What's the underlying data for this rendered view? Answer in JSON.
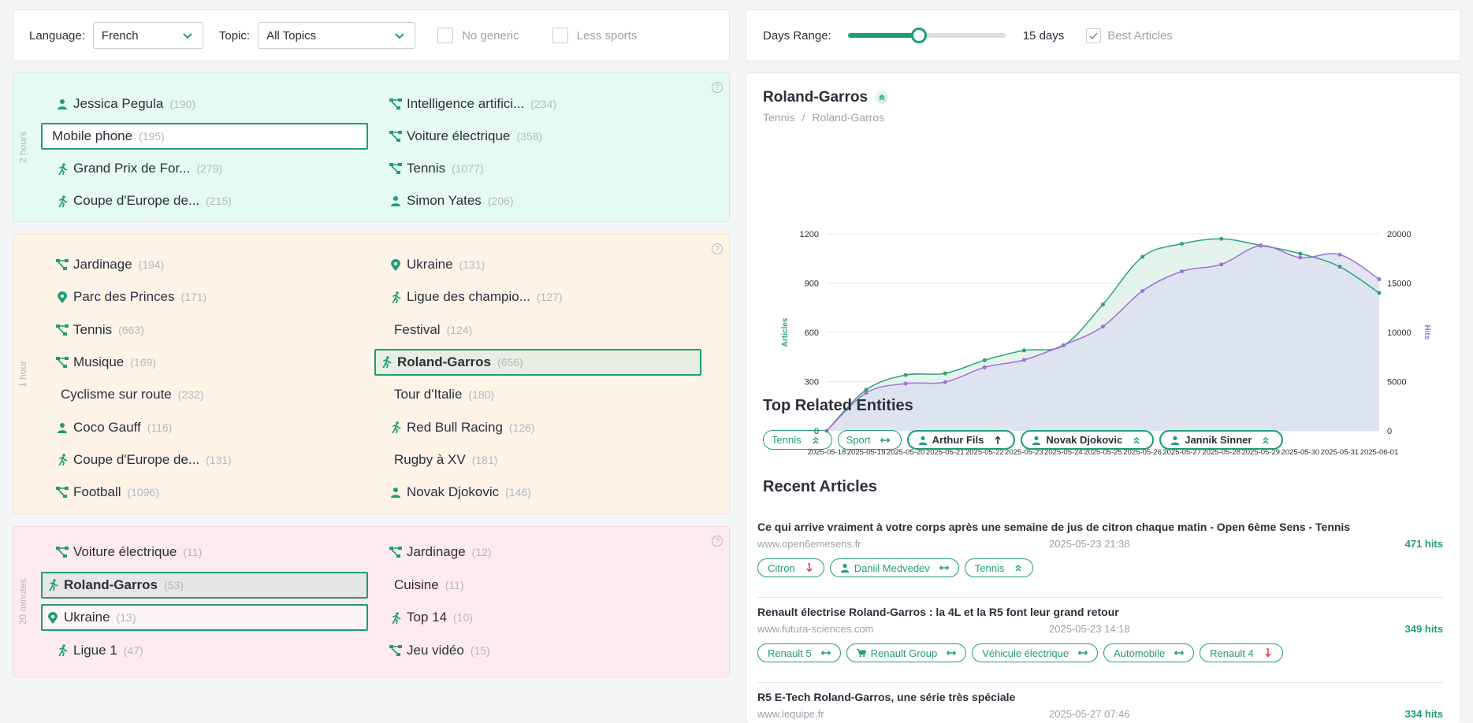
{
  "filters": {
    "language_label": "Language:",
    "language_value": "French",
    "topic_label": "Topic:",
    "topic_value": "All Topics",
    "no_generic_label": "No generic",
    "less_sports_label": "Less sports"
  },
  "panels": [
    {
      "side_label": "2 hours",
      "help": "?",
      "items": [
        {
          "name": "Jessica Pegula",
          "count": "(190)",
          "icon": "person-icon"
        },
        {
          "name": "Intelligence artifici...",
          "count": "(234)",
          "icon": "topic-icon"
        },
        {
          "name": "Mobile phone",
          "count": "(195)",
          "icon": ""
        },
        {
          "name": "Voiture électrique",
          "count": "(358)",
          "icon": "topic-icon"
        },
        {
          "name": "Grand Prix de For...",
          "count": "(279)",
          "icon": "runner-icon"
        },
        {
          "name": "Tennis",
          "count": "(1077)",
          "icon": "topic-icon"
        },
        {
          "name": "Coupe d'Europe de...",
          "count": "(215)",
          "icon": "runner-icon"
        },
        {
          "name": "Simon Yates",
          "count": "(206)",
          "icon": "person-icon"
        }
      ]
    },
    {
      "side_label": "1 hour",
      "help": "?",
      "items": [
        {
          "name": "Jardinage",
          "count": "(194)",
          "icon": "topic-icon"
        },
        {
          "name": "Ukraine",
          "count": "(131)",
          "icon": "pin-icon"
        },
        {
          "name": "Parc des Princes",
          "count": "(171)",
          "icon": "pin-icon"
        },
        {
          "name": "Ligue des champio...",
          "count": "(127)",
          "icon": "runner-icon"
        },
        {
          "name": "Tennis",
          "count": "(663)",
          "icon": "topic-icon"
        },
        {
          "name": "Festival",
          "count": "(124)",
          "icon": ""
        },
        {
          "name": "Musique",
          "count": "(169)",
          "icon": "topic-icon"
        },
        {
          "name": "Roland-Garros",
          "count": "(656)",
          "icon": "runner-icon"
        },
        {
          "name": "Cyclisme sur route",
          "count": "(232)",
          "icon": ""
        },
        {
          "name": "Tour d'Italie",
          "count": "(180)",
          "icon": ""
        },
        {
          "name": "Coco Gauff",
          "count": "(116)",
          "icon": "person-icon"
        },
        {
          "name": "Red Bull Racing",
          "count": "(126)",
          "icon": "runner-icon"
        },
        {
          "name": "Coupe d'Europe de...",
          "count": "(131)",
          "icon": "runner-icon"
        },
        {
          "name": "Rugby à XV",
          "count": "(181)",
          "icon": ""
        },
        {
          "name": "Football",
          "count": "(1096)",
          "icon": "topic-icon"
        },
        {
          "name": "Novak Djokovic",
          "count": "(146)",
          "icon": "person-icon"
        }
      ]
    },
    {
      "side_label": "20 minutes",
      "help": "?",
      "items": [
        {
          "name": "Voiture électrique",
          "count": "(11)",
          "icon": "topic-icon"
        },
        {
          "name": "Jardinage",
          "count": "(12)",
          "icon": "topic-icon"
        },
        {
          "name": "Roland-Garros",
          "count": "(53)",
          "icon": "runner-icon"
        },
        {
          "name": "Cuisine",
          "count": "(11)",
          "icon": ""
        },
        {
          "name": "Ukraine",
          "count": "(13)",
          "icon": "pin-icon"
        },
        {
          "name": "Top 14",
          "count": "(10)",
          "icon": "runner-icon"
        },
        {
          "name": "Ligue 1",
          "count": "(47)",
          "icon": "runner-icon"
        },
        {
          "name": "Jeu vidéo",
          "count": "(15)",
          "icon": "topic-icon"
        }
      ]
    }
  ],
  "days": {
    "label": "Days Range:",
    "value_text": "15 days",
    "slider_fraction": 0.45,
    "best_articles_label": "Best Articles",
    "best_articles_checked": true
  },
  "entity": {
    "title": "Roland-Garros",
    "breadcrumb": [
      "Tennis",
      "Roland-Garros"
    ],
    "related_title": "Top Related Entities",
    "related": [
      {
        "label": "Tennis",
        "icon": "",
        "trend": "up-double",
        "strong": false
      },
      {
        "label": "Sport",
        "icon": "",
        "trend": "flat",
        "strong": false
      },
      {
        "label": "Arthur Fils",
        "icon": "person-icon",
        "trend": "up",
        "strong": true
      },
      {
        "label": "Novak Djokovic",
        "icon": "person-icon",
        "trend": "up-double",
        "strong": true
      },
      {
        "label": "Jannik Sinner",
        "icon": "person-icon",
        "trend": "up-double",
        "strong": true
      }
    ],
    "articles_title": "Recent Articles",
    "articles": [
      {
        "title": "Ce qui arrive vraiment à votre corps après une semaine de jus de citron chaque matin - Open 6ème Sens - Tennis",
        "source": "www.open6emesens.fr",
        "date": "2025-05-23 21:38",
        "hits": "471 hits",
        "tags": [
          {
            "label": "Citron",
            "icon": "",
            "trend": "down"
          },
          {
            "label": "Daniil Medvedev",
            "icon": "person-icon",
            "trend": "flat"
          },
          {
            "label": "Tennis",
            "icon": "",
            "trend": "up-double"
          }
        ]
      },
      {
        "title": "Renault électrise Roland-Garros : la 4L et la R5 font leur grand retour",
        "source": "www.futura-sciences.com",
        "date": "2025-05-23 14:18",
        "hits": "349 hits",
        "tags": [
          {
            "label": "Renault 5",
            "icon": "",
            "trend": "flat"
          },
          {
            "label": "Renault Group",
            "icon": "cart-icon",
            "trend": "flat"
          },
          {
            "label": "Véhicule électrique",
            "icon": "",
            "trend": "flat"
          },
          {
            "label": "Automobile",
            "icon": "",
            "trend": "flat"
          },
          {
            "label": "Renault 4",
            "icon": "",
            "trend": "down"
          }
        ]
      },
      {
        "title": "R5 E-Tech Roland-Garros, une série très spéciale",
        "source": "www.lequipe.fr",
        "date": "2025-05-27 07:46",
        "hits": "334 hits",
        "tags": []
      }
    ]
  },
  "colors": {
    "accent": "#1f9d73",
    "hits_line": "#a070d8",
    "articles_line": "#2fa07a"
  },
  "chart_data": {
    "type": "line",
    "x": [
      "2025-05-18",
      "2025-05-19",
      "2025-05-20",
      "2025-05-21",
      "2025-05-22",
      "2025-05-23",
      "2025-05-24",
      "2025-05-25",
      "2025-05-26",
      "2025-05-27",
      "2025-05-28",
      "2025-05-29",
      "2025-05-30",
      "2025-05-31",
      "2025-06-01"
    ],
    "series": [
      {
        "name": "Articles",
        "axis": "left",
        "color": "#2fa07a",
        "values": [
          0,
          250,
          340,
          350,
          430,
          490,
          520,
          770,
          1060,
          1140,
          1170,
          1130,
          1080,
          1000,
          840
        ]
      },
      {
        "name": "Hits",
        "axis": "right",
        "color": "#a070d8",
        "values": [
          0,
          3850,
          4800,
          4950,
          6450,
          7200,
          8700,
          10600,
          14200,
          16200,
          16900,
          18800,
          17600,
          17900,
          15400
        ]
      }
    ],
    "ylabel_left": "Articles",
    "ylabel_right": "Hits",
    "yticks_left": [
      "0",
      "300",
      "600",
      "900",
      "1200"
    ],
    "yticks_right": [
      "0",
      "5000",
      "10000",
      "15000",
      "20000"
    ],
    "ylim_left": [
      0,
      1200
    ],
    "ylim_right": [
      0,
      20000
    ],
    "grid": true
  }
}
